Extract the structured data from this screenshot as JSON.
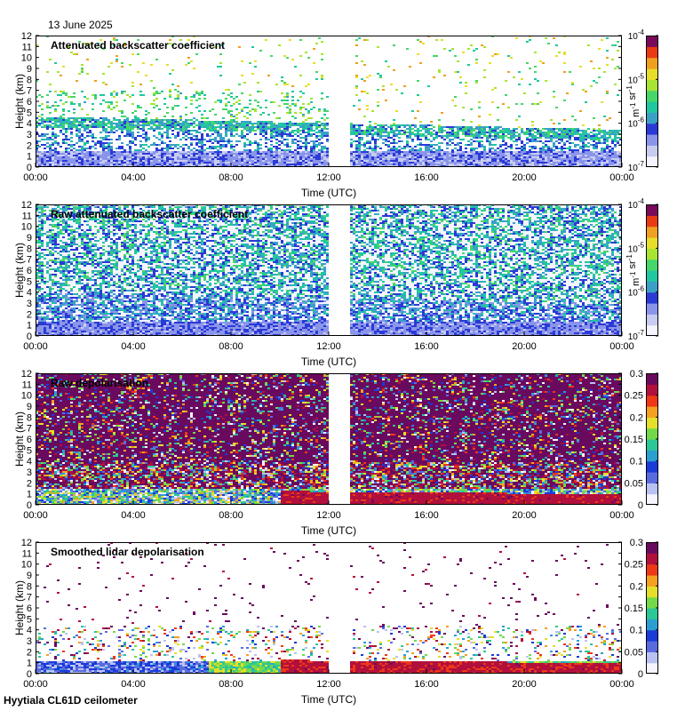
{
  "header": {
    "date": "13 June 2025"
  },
  "footer": {
    "site_instrument": "Hyytiala CL61D ceilometer"
  },
  "colors": {
    "gap": "#ffffff",
    "plot_border": "#000000",
    "backscatter_scale": [
      "#f5f5ff",
      "#c8ccf0",
      "#8a95ea",
      "#2b3ad6",
      "#3aa0c8",
      "#20c7a0",
      "#47d66a",
      "#a8e432",
      "#e7de2a",
      "#f0a020",
      "#ea3a14",
      "#7a0a5a"
    ],
    "depol_scale": [
      "#f5f5ff",
      "#b9c2f2",
      "#5a6be0",
      "#1a3bd8",
      "#2a9fd0",
      "#2cc796",
      "#73d94a",
      "#e4df2a",
      "#f4a020",
      "#ee3816",
      "#b2103c",
      "#6a0a5e"
    ]
  },
  "chart_data": [
    {
      "type": "heatmap",
      "title": "Attenuated backscatter coefficient",
      "xlabel": "Time (UTC)",
      "ylabel": "Height (km)",
      "x_ticks": [
        "00:00",
        "04:00",
        "08:00",
        "12:00",
        "16:00",
        "20:00",
        "00:00"
      ],
      "x_range_hours": [
        0,
        24
      ],
      "y_ticks": [
        0,
        1,
        2,
        3,
        4,
        5,
        6,
        7,
        8,
        9,
        10,
        11,
        12
      ],
      "y_range_km": [
        0,
        12
      ],
      "data_gap_hours": [
        12.05,
        12.85
      ],
      "colorbar": {
        "scale": "log",
        "ticks": [
          "10-7",
          "10-6",
          "10-5",
          "10-4"
        ],
        "unit": "m-1 sr-1"
      }
    },
    {
      "type": "heatmap",
      "title": "Raw attenuated backscatter coefficient",
      "xlabel": "Time (UTC)",
      "ylabel": "Height (km)",
      "x_ticks": [
        "00:00",
        "04:00",
        "08:00",
        "12:00",
        "16:00",
        "20:00",
        "00:00"
      ],
      "x_range_hours": [
        0,
        24
      ],
      "y_ticks": [
        0,
        1,
        2,
        3,
        4,
        5,
        6,
        7,
        8,
        9,
        10,
        11,
        12
      ],
      "y_range_km": [
        0,
        12
      ],
      "data_gap_hours": [
        12.05,
        12.85
      ],
      "colorbar": {
        "scale": "log",
        "ticks": [
          "10-7",
          "10-6",
          "10-5",
          "10-4"
        ],
        "unit": "m-1 sr-1"
      }
    },
    {
      "type": "heatmap",
      "title": "Raw depolarisation",
      "xlabel": "Time (UTC)",
      "ylabel": "Height (km)",
      "x_ticks": [
        "00:00",
        "04:00",
        "08:00",
        "12:00",
        "16:00",
        "20:00",
        "00:00"
      ],
      "x_range_hours": [
        0,
        24
      ],
      "y_ticks": [
        0,
        1,
        2,
        3,
        4,
        5,
        6,
        7,
        8,
        9,
        10,
        11,
        12
      ],
      "y_range_km": [
        0,
        12
      ],
      "data_gap_hours": [
        12.05,
        12.85
      ],
      "colorbar": {
        "scale": "linear",
        "ticks": [
          "0",
          "0.05",
          "0.1",
          "0.15",
          "0.2",
          "0.25",
          "0.3"
        ],
        "range": [
          0,
          0.3
        ]
      }
    },
    {
      "type": "heatmap",
      "title": "Smoothed lidar depolarisation",
      "xlabel": "Time (UTC)",
      "ylabel": "Height (km)",
      "x_ticks": [
        "00:00",
        "04:00",
        "08:00",
        "12:00",
        "16:00",
        "20:00",
        "00:00"
      ],
      "x_range_hours": [
        0,
        24
      ],
      "y_ticks": [
        0,
        1,
        2,
        3,
        4,
        5,
        6,
        7,
        8,
        9,
        10,
        11,
        12
      ],
      "y_range_km": [
        0,
        12
      ],
      "data_gap_hours": [
        12.05,
        12.85
      ],
      "colorbar": {
        "scale": "linear",
        "ticks": [
          "0",
          "0.05",
          "0.1",
          "0.15",
          "0.2",
          "0.25",
          "0.3"
        ],
        "range": [
          0,
          0.3
        ]
      }
    }
  ]
}
